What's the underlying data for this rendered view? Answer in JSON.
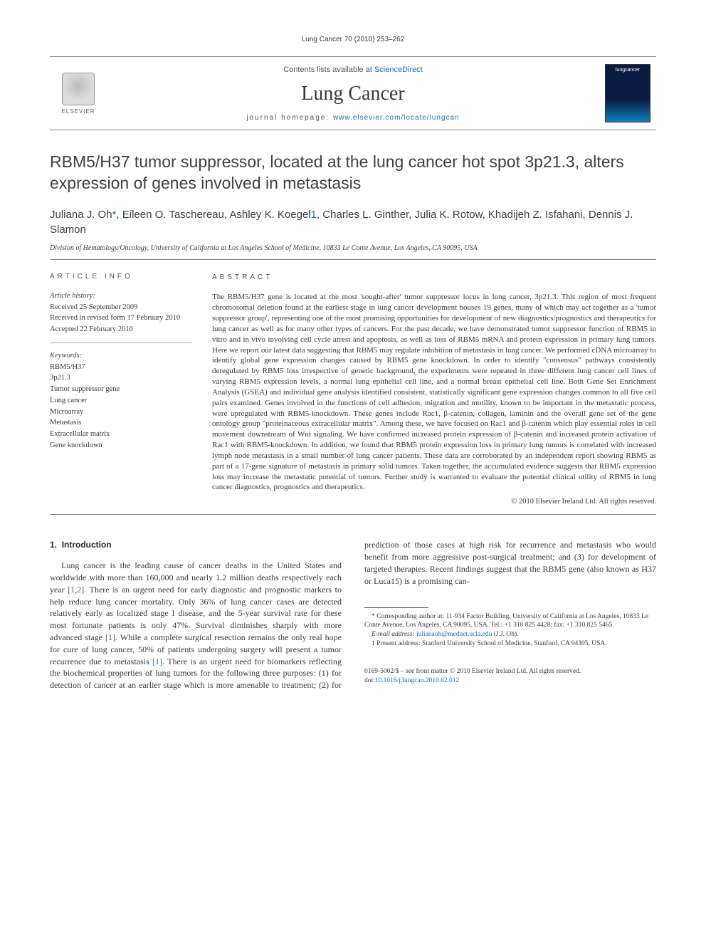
{
  "running_head": "Lung Cancer 70 (2010) 253–262",
  "masthead": {
    "publisher": "ELSEVIER",
    "contents_prefix": "Contents lists available at ",
    "contents_link": "ScienceDirect",
    "journal": "Lung Cancer",
    "homepage_prefix": "journal homepage: ",
    "homepage_url": "www.elsevier.com/locate/lungcan",
    "cover_label": "lungcancer"
  },
  "title": "RBM5/H37 tumor suppressor, located at the lung cancer hot spot 3p21.3, alters expression of genes involved in metastasis",
  "authors_html": "Juliana J. Oh<a href='#'>*</a>, Eileen O. Taschereau, Ashley K. Koegel<a href='#'>1</a>, Charles L. Ginther, Julia K. Rotow, Khadijeh Z. Isfahani, Dennis J. Slamon",
  "affiliation": "Division of Hematology/Oncology, University of California at Los Angeles School of Medicine, 10833 Le Conte Avenue, Los Angeles, CA 90095, USA",
  "article_info": {
    "head": "ARTICLE INFO",
    "history_head": "Article history:",
    "received": "Received 25 September 2009",
    "revised": "Received in revised form 17 February 2010",
    "accepted": "Accepted 22 February 2010",
    "keywords_head": "Keywords:",
    "keywords": [
      "RBM5/H37",
      "3p21.3",
      "Tumor suppressor gene",
      "Lung cancer",
      "Microarray",
      "Metastasis",
      "Extracellular matrix",
      "Gene knockdown"
    ]
  },
  "abstract": {
    "head": "ABSTRACT",
    "text": "The RBM5/H37 gene is located at the most 'sought-after' tumor suppressor locus in lung cancer, 3p21.3. This region of most frequent chromosomal deletion found at the earliest stage in lung cancer development houses 19 genes, many of which may act together as a 'tumor suppressor group', representing one of the most promising opportunities for development of new diagnostics/prognostics and therapeutics for lung cancer as well as for many other types of cancers. For the past decade, we have demonstrated tumor suppressor function of RBM5 in vitro and in vivo involving cell cycle arrest and apoptosis, as well as loss of RBM5 mRNA and protein expression in primary lung tumors. Here we report our latest data suggesting that RBM5 may regulate inhibition of metastasis in lung cancer. We performed cDNA microarray to identify global gene expression changes caused by RBM5 gene knockdown. In order to identify \"consensus\" pathways consistently deregulated by RBM5 loss irrespective of genetic background, the experiments were repeated in three different lung cancer cell lines of varying RBM5 expression levels, a normal lung epithelial cell line, and a normal breast epithelial cell line. Both Gene Set Enrichment Analysis (GSEA) and individual gene analysis identified consistent, statistically significant gene expression changes common to all five cell pairs examined. Genes involved in the functions of cell adhesion, migration and motility, known to be important in the metastatic process, were upregulated with RBM5-knockdown. These genes include Rac1, β-catenin, collagen, laminin and the overall gene set of the gene ontology group \"proteinaceous extracellular matrix\". Among these, we have focused on Rac1 and β-catenin which play essential roles in cell movement downstream of Wnt signaling. We have confirmed increased protein expression of β-catenin and increased protein activation of Rac1 with RBM5-knockdown. In addition, we found that RBM5 protein expression loss in primary lung tumors is correlated with increased lymph node metastasis in a small number of lung cancer patients. These data are corroborated by an independent report showing RBM5 as part of a 17-gene signature of metastasis in primary solid tumors. Taken together, the accumulated evidence suggests that RBM5 expression loss may increase the metastatic potential of tumors. Further study is warranted to evaluate the potential clinical utility of RBM5 in lung cancer diagnostics, prognostics and therapeutics.",
    "copyright": "© 2010 Elsevier Ireland Ltd. All rights reserved."
  },
  "body": {
    "section_num": "1.",
    "section_title": "Introduction",
    "para1_a": "Lung cancer is the leading cause of cancer deaths in the United States and worldwide with more than 160,000 and nearly 1.2 million deaths respectively each year ",
    "para1_ref1": "[1,2]",
    "para1_b": ". There is an urgent need for early diagnostic and prognostic markers to help reduce lung cancer mortality. Only 36% of lung cancer cases are detected relatively early as localized stage I disease, and the 5-year survival rate for these most fortunate patients is only 47%. Survival diminishes sharply with more advanced stage ",
    "para1_ref2": "[1]",
    "para1_c": ". While a complete surgical resection remains the only real hope for cure of lung cancer, 50% of patients undergoing surgery will present a tumor recurrence due to metastasis ",
    "para1_ref3": "[1]",
    "para1_d": ". There is an urgent need for biomarkers reflecting the biochemical properties of lung tumors for the following three purposes: (1) for detection of cancer at an earlier stage which is more amenable to treatment; (2) for prediction of those cases at high risk for recurrence and metastasis who would benefit from more aggressive post-surgical treatment; and (3) for development of targeted therapies. Recent findings suggest that the RBM5 gene (also known as H37 or Luca15) is a promising can-"
  },
  "footnotes": {
    "corr": "* Corresponding author at: 11-934 Factor Building, University of California at Los Angeles, 10833 Le Conte Avenue, Los Angeles, CA 90095, USA. Tel.: +1 310 825 4428; fax: +1 310 825 5465.",
    "email_label": "E-mail address: ",
    "email": "julianaoh@mednet.ucla.edu",
    "email_who": " (J.J. Oh).",
    "note1": "1 Present address: Stanford University School of Medicine, Stanford, CA 94305, USA."
  },
  "bottom": {
    "line1": "0169-5002/$ – see front matter © 2010 Elsevier Ireland Ltd. All rights reserved.",
    "doi_label": "doi:",
    "doi": "10.1016/j.lungcan.2010.02.012"
  },
  "colors": {
    "link": "#1b6fb3",
    "text": "#3a3a3a",
    "rule": "#888888"
  }
}
